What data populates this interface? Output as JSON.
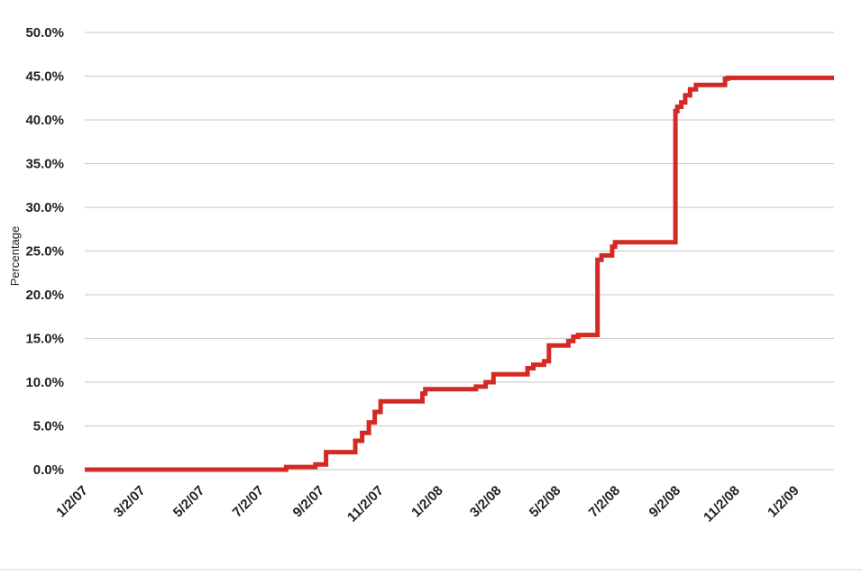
{
  "chart_data": {
    "type": "line",
    "title": "",
    "xlabel": "",
    "ylabel": "Percentage",
    "ylim": [
      0,
      50
    ],
    "grid": true,
    "legend": "none",
    "color": "#d42a26",
    "y_ticks": [
      "0.0%",
      "5.0%",
      "10.0%",
      "15.0%",
      "20.0%",
      "25.0%",
      "30.0%",
      "35.0%",
      "40.0%",
      "45.0%",
      "50.0%"
    ],
    "x_ticks": [
      "1/2/07",
      "3/2/07",
      "5/2/07",
      "7/2/07",
      "9/2/07",
      "11/2/07",
      "1/2/08",
      "3/2/08",
      "5/2/08",
      "7/2/08",
      "9/2/08",
      "11/2/08",
      "1/2/09"
    ],
    "xlim": [
      "1/2/07",
      "2/10/09"
    ],
    "series": [
      {
        "step": true,
        "x": [
          "1/2/07",
          "7/28/07",
          "8/27/07",
          "9/7/07",
          "10/7/07",
          "10/14/07",
          "10/21/07",
          "10/27/07",
          "11/2/07",
          "12/15/07",
          "12/18/07",
          "2/8/08",
          "2/18/08",
          "2/26/08",
          "4/1/08",
          "4/7/08",
          "4/18/08",
          "4/23/08",
          "5/13/08",
          "5/18/08",
          "5/23/08",
          "6/12/08",
          "6/16/08",
          "6/27/08",
          "6/30/08",
          "8/31/08",
          "9/2/08",
          "9/6/08",
          "9/10/08",
          "9/15/08",
          "9/21/08",
          "10/21/08",
          "10/24/08",
          "2/10/09"
        ],
        "y": [
          0,
          0.3,
          0.6,
          2.0,
          3.3,
          4.2,
          5.4,
          6.6,
          7.8,
          8.7,
          9.2,
          9.5,
          10.0,
          10.9,
          11.6,
          12.0,
          12.4,
          14.2,
          14.7,
          15.2,
          15.4,
          24.0,
          24.5,
          25.5,
          26.0,
          41.0,
          41.5,
          42.0,
          42.8,
          43.5,
          44.0,
          44.7,
          44.8,
          44.8
        ]
      }
    ]
  }
}
